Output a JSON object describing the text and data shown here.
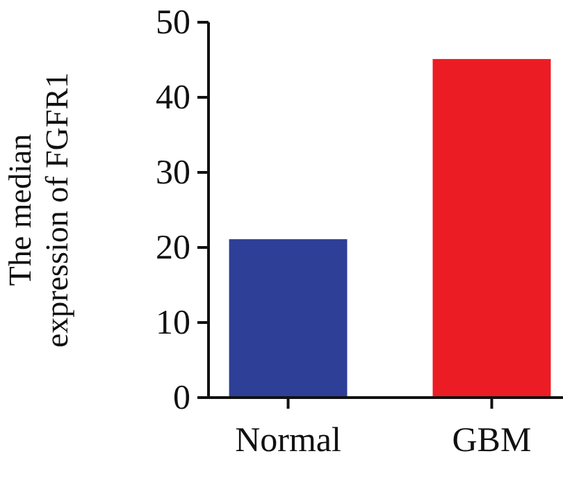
{
  "chart_data": {
    "type": "bar",
    "ylabel": "The median expression of FGFR1",
    "categories": [
      "Normal",
      "GBM"
    ],
    "values": [
      21.1,
      45.1
    ],
    "colors": [
      "#2e3f97",
      "#ec1c24"
    ],
    "ylim": [
      0,
      50
    ],
    "yticks": [
      0,
      10,
      20,
      30,
      40,
      50
    ],
    "grid": false
  }
}
